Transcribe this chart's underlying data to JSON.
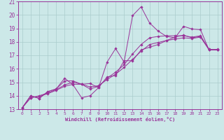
{
  "xlabel": "Windchill (Refroidissement éolien,°C)",
  "xlim": [
    -0.5,
    23.5
  ],
  "ylim": [
    13,
    21
  ],
  "yticks": [
    13,
    14,
    15,
    16,
    17,
    18,
    19,
    20,
    21
  ],
  "xticks": [
    0,
    1,
    2,
    3,
    4,
    5,
    6,
    7,
    8,
    9,
    10,
    11,
    12,
    13,
    14,
    15,
    16,
    17,
    18,
    19,
    20,
    21,
    22,
    23
  ],
  "background_color": "#cce8e8",
  "grid_color": "#aacccc",
  "line_color": "#993399",
  "lines": [
    {
      "x": [
        0,
        1,
        2,
        3,
        4,
        5,
        6,
        7,
        8,
        9,
        10,
        11,
        12,
        13,
        14,
        15,
        16,
        17,
        18,
        19,
        20,
        21,
        22,
        23
      ],
      "y": [
        13.1,
        14.0,
        13.8,
        14.3,
        14.5,
        15.3,
        14.8,
        13.85,
        14.0,
        14.6,
        16.5,
        17.5,
        16.5,
        19.95,
        20.6,
        19.4,
        18.8,
        18.4,
        18.3,
        19.15,
        18.95,
        18.9,
        17.4,
        17.45
      ]
    },
    {
      "x": [
        0,
        1,
        2,
        3,
        4,
        5,
        6,
        7,
        8,
        9,
        10,
        11,
        12,
        13,
        14,
        15,
        16,
        17,
        18,
        19,
        20,
        21,
        22,
        23
      ],
      "y": [
        13.1,
        14.0,
        13.8,
        14.3,
        14.5,
        15.1,
        15.1,
        14.85,
        14.9,
        14.6,
        15.4,
        15.5,
        16.6,
        16.6,
        17.4,
        17.6,
        17.8,
        18.1,
        18.35,
        18.5,
        18.3,
        18.4,
        17.45,
        17.4
      ]
    },
    {
      "x": [
        0,
        1,
        2,
        3,
        4,
        5,
        6,
        7,
        8,
        9,
        10,
        11,
        12,
        13,
        14,
        15,
        16,
        17,
        18,
        19,
        20,
        21,
        22,
        23
      ],
      "y": [
        13.1,
        13.85,
        14.0,
        14.2,
        14.45,
        14.8,
        15.0,
        14.85,
        14.5,
        14.7,
        15.3,
        15.75,
        16.3,
        17.1,
        17.8,
        18.3,
        18.4,
        18.45,
        18.45,
        18.45,
        18.35,
        18.45,
        17.45,
        17.4
      ]
    },
    {
      "x": [
        0,
        1,
        2,
        3,
        4,
        5,
        6,
        7,
        8,
        9,
        10,
        11,
        12,
        13,
        14,
        15,
        16,
        17,
        18,
        19,
        20,
        21,
        22,
        23
      ],
      "y": [
        13.1,
        13.85,
        13.95,
        14.15,
        14.4,
        14.7,
        14.85,
        14.85,
        14.65,
        14.75,
        15.2,
        15.6,
        16.1,
        16.7,
        17.3,
        17.8,
        17.95,
        18.1,
        18.2,
        18.3,
        18.25,
        18.35,
        17.4,
        17.4
      ]
    }
  ]
}
